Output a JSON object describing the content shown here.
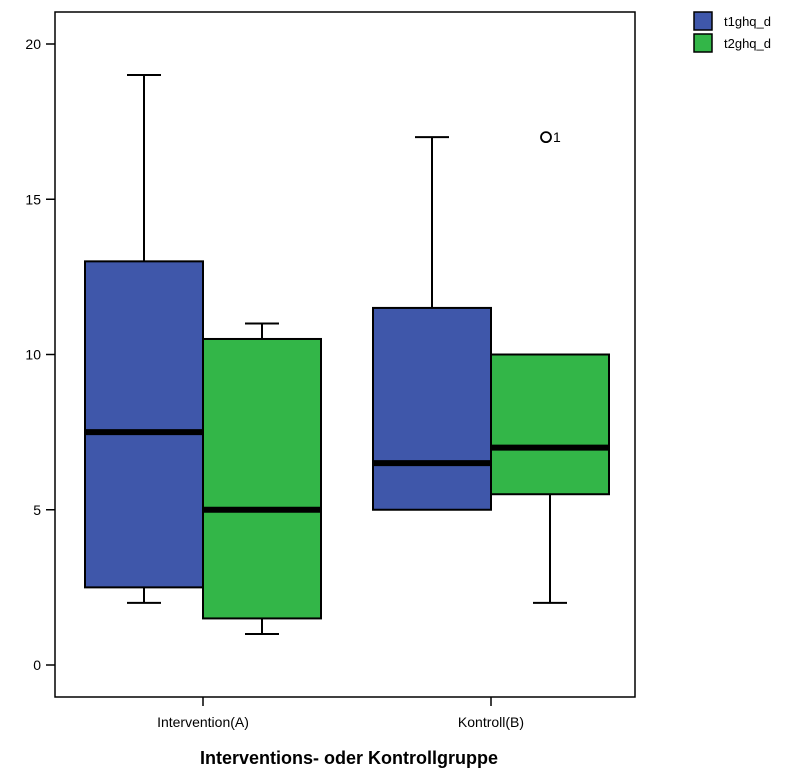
{
  "chart_data": {
    "type": "boxplot",
    "xlabel": "Interventions- oder Kontrollgruppe",
    "ylabel": "",
    "ylim": [
      -1,
      21
    ],
    "yticks": [
      0,
      5,
      10,
      15,
      20
    ],
    "ytick_labels": [
      "0",
      "5",
      "10",
      "15",
      "20"
    ],
    "categories": [
      "Intervention(A)",
      "Kontroll(B)"
    ],
    "legend_position": "top-right",
    "grid": false,
    "series": [
      {
        "name": "t1ghq_d",
        "color": "#3f57aa",
        "boxes": [
          {
            "min": 2,
            "q1": 2.5,
            "median": 7.5,
            "q3": 13,
            "max": 19
          },
          {
            "min": 5,
            "q1": 5,
            "median": 6.5,
            "q3": 11.5,
            "max": 17
          }
        ]
      },
      {
        "name": "t2ghq_d",
        "color": "#33b648",
        "boxes": [
          {
            "min": 1,
            "q1": 1.5,
            "median": 5,
            "q3": 10.5,
            "max": 11
          },
          {
            "min": 2,
            "q1": 5.5,
            "median": 7,
            "q3": 10,
            "max": 10,
            "outliers": [
              {
                "value": 17,
                "label": "1"
              }
            ]
          }
        ]
      }
    ]
  }
}
